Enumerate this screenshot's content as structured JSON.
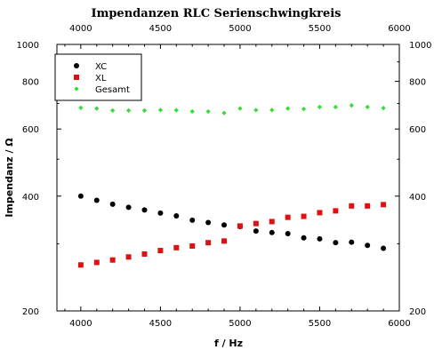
{
  "chart_data": {
    "type": "scatter",
    "title": "Impendanzen RLC Serienschwingkreis",
    "xlabel": "f / Hz",
    "ylabel": "Impendanz / Ω",
    "xlim": [
      3850,
      6000
    ],
    "ylim": [
      200,
      1000
    ],
    "yscale": "log",
    "x_ticks": [
      4000,
      4500,
      5000,
      5500,
      6000
    ],
    "y_ticks": [
      200,
      400,
      600,
      800,
      1000
    ],
    "x_tick_labels": [
      "4000",
      "4500",
      "5000",
      "5500",
      "6000"
    ],
    "y_tick_labels": [
      "200",
      "400",
      "600",
      "800",
      "1000"
    ],
    "grid": false,
    "legend_position": "top-left",
    "x": [
      4000,
      4100,
      4200,
      4300,
      4400,
      4500,
      4600,
      4700,
      4800,
      4900,
      5000,
      5100,
      5200,
      5300,
      5400,
      5500,
      5600,
      5700,
      5800,
      5900
    ],
    "series": [
      {
        "name": "XC",
        "color": "#000000",
        "marker": "circle",
        "values": [
          400,
          390,
          381,
          374,
          368,
          361,
          355,
          346,
          341,
          336,
          333,
          324,
          321,
          319,
          311,
          309,
          302,
          303,
          297,
          292
        ]
      },
      {
        "name": "XL",
        "color": "#dd1111",
        "marker": "square",
        "values": [
          264,
          268,
          272,
          277,
          282,
          288,
          293,
          296,
          302,
          305,
          334,
          339,
          343,
          352,
          354,
          362,
          366,
          377,
          377,
          380
        ]
      },
      {
        "name": "Gesamt",
        "color": "#33dd33",
        "marker": "diamond",
        "values": [
          682,
          679,
          671,
          671,
          671,
          673,
          672,
          667,
          667,
          661,
          679,
          673,
          673,
          679,
          677,
          685,
          685,
          692,
          685,
          681
        ]
      }
    ]
  }
}
